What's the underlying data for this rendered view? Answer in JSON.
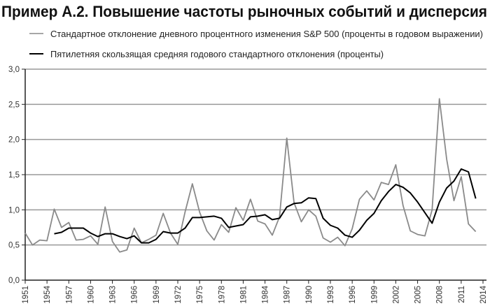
{
  "chart_data": {
    "type": "line",
    "title": "Пример А.2. Повышение частоты рыночных событий и дисперсия",
    "xlabel": "",
    "ylabel": "",
    "xlim": [
      1951,
      2014
    ],
    "ylim": [
      0,
      3.0
    ],
    "grid": true,
    "legend_placement": "top-left",
    "x_ticks": [
      "1951",
      "1954",
      "1957",
      "1960",
      "1963",
      "1966",
      "1969",
      "1972",
      "1975",
      "1978",
      "1981",
      "1984",
      "1987",
      "1990",
      "1993",
      "1996",
      "1999",
      "2002",
      "2005",
      "2008",
      "2011",
      "2014"
    ],
    "y_ticks": [
      "0,0",
      "0,5",
      "1,0",
      "1,5",
      "2,0",
      "2,5",
      "3,0"
    ],
    "series": [
      {
        "name": "Стандартное отклонение дневного процентного изменения S&P 500 (проценты в годовом выражении)",
        "color": "#8a8a8a",
        "x_start": 1951,
        "values": [
          0.67,
          0.5,
          0.57,
          0.56,
          1.01,
          0.75,
          0.82,
          0.57,
          0.58,
          0.63,
          0.51,
          1.04,
          0.55,
          0.4,
          0.43,
          0.74,
          0.53,
          0.58,
          0.64,
          0.95,
          0.67,
          0.51,
          0.97,
          1.37,
          0.97,
          0.7,
          0.57,
          0.79,
          0.68,
          1.03,
          0.85,
          1.15,
          0.84,
          0.8,
          0.64,
          0.9,
          2.02,
          1.1,
          0.83,
          1.0,
          0.91,
          0.6,
          0.54,
          0.61,
          0.49,
          0.73,
          1.15,
          1.27,
          1.14,
          1.39,
          1.36,
          1.64,
          1.06,
          0.7,
          0.65,
          0.63,
          1.0,
          2.58,
          1.72,
          1.13,
          1.47,
          0.8,
          0.69
        ]
      },
      {
        "name": "Пятилетняя скользящая средняя годового стандартного отклонения (проценты)",
        "color": "#000000",
        "x_start": 1955,
        "values": [
          0.66,
          0.68,
          0.74,
          0.74,
          0.74,
          0.67,
          0.62,
          0.66,
          0.66,
          0.62,
          0.59,
          0.63,
          0.53,
          0.53,
          0.58,
          0.69,
          0.67,
          0.67,
          0.74,
          0.89,
          0.89,
          0.9,
          0.91,
          0.88,
          0.75,
          0.77,
          0.79,
          0.9,
          0.91,
          0.93,
          0.86,
          0.88,
          1.04,
          1.09,
          1.1,
          1.17,
          1.16,
          0.88,
          0.78,
          0.74,
          0.64,
          0.61,
          0.71,
          0.85,
          0.95,
          1.13,
          1.26,
          1.36,
          1.32,
          1.24,
          1.11,
          0.96,
          0.81,
          1.11,
          1.31,
          1.41,
          1.58,
          1.54,
          1.16
        ]
      }
    ]
  }
}
